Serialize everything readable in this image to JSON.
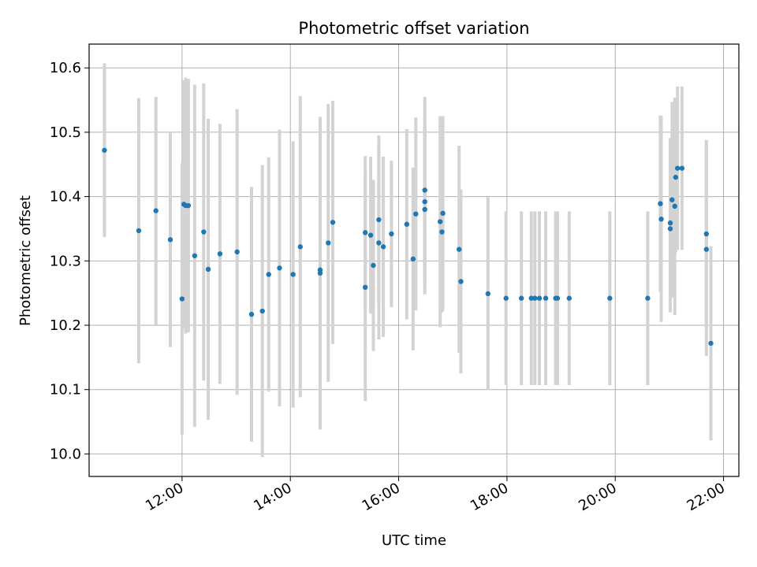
{
  "chart_data": {
    "type": "scatter",
    "title": "Photometric offset variation",
    "xlabel": "UTC time",
    "ylabel": "Photometric offset",
    "xlim": [
      "10:17",
      "22:17"
    ],
    "ylim": [
      9.965,
      10.637
    ],
    "xticks": [
      "12:00",
      "14:00",
      "16:00",
      "18:00",
      "20:00",
      "22:00"
    ],
    "yticks": [
      10.0,
      10.1,
      10.2,
      10.3,
      10.4,
      10.5,
      10.6
    ],
    "grid": true,
    "colors": {
      "point": "#1f77b4",
      "errorbar": "#d3d3d3",
      "grid": "#b0b0b0"
    },
    "series": [
      {
        "x": [
          "10:34",
          "11:12",
          "11:31",
          "11:47",
          "12:00",
          "12:02",
          "12:04",
          "12:07",
          "12:14",
          "12:24",
          "12:29",
          "12:42",
          "13:01",
          "13:17",
          "13:29",
          "13:36",
          "13:48",
          "14:03",
          "14:11",
          "14:33",
          "14:33",
          "14:42",
          "14:47",
          "15:23",
          "15:23",
          "15:29",
          "15:32",
          "15:38",
          "15:38",
          "15:43",
          "15:52",
          "16:09",
          "16:16",
          "16:19",
          "16:29",
          "16:29",
          "16:29",
          "16:46",
          "16:48",
          "16:49",
          "17:07",
          "17:09",
          "17:39",
          "17:59",
          "18:16",
          "18:27",
          "18:31",
          "18:36",
          "18:43",
          "18:54",
          "18:56",
          "19:09",
          "19:54",
          "20:36",
          "20:50",
          "20:51",
          "21:01",
          "21:01",
          "21:03",
          "21:06",
          "21:07",
          "21:09",
          "21:14",
          "21:41",
          "21:41",
          "21:46"
        ],
        "y": [
          10.472,
          10.347,
          10.378,
          10.333,
          10.241,
          10.388,
          10.386,
          10.386,
          10.308,
          10.345,
          10.287,
          10.311,
          10.314,
          10.217,
          10.222,
          10.279,
          10.289,
          10.279,
          10.322,
          10.286,
          10.281,
          10.328,
          10.36,
          10.259,
          10.344,
          10.34,
          10.293,
          10.364,
          10.328,
          10.322,
          10.342,
          10.357,
          10.303,
          10.373,
          10.41,
          10.392,
          10.38,
          10.361,
          10.345,
          10.374,
          10.318,
          10.268,
          10.249,
          10.242,
          10.242,
          10.242,
          10.242,
          10.242,
          10.242,
          10.242,
          10.242,
          10.242,
          10.242,
          10.242,
          10.389,
          10.365,
          10.359,
          10.35,
          10.395,
          10.385,
          10.43,
          10.444,
          10.444,
          10.342,
          10.318,
          10.172
        ],
        "yerr": [
          0.135,
          0.206,
          0.177,
          0.167,
          0.211,
          0.193,
          0.199,
          0.197,
          0.266,
          0.231,
          0.234,
          0.202,
          0.222,
          0.198,
          0.227,
          0.182,
          0.215,
          0.207,
          0.234,
          0.238,
          0.243,
          0.216,
          0.189,
          0.177,
          0.119,
          0.122,
          0.133,
          0.131,
          0.15,
          0.14,
          0.114,
          0.148,
          0.142,
          0.15,
          0.145,
          0.119,
          0.132,
          0.164,
          0.125,
          0.151,
          0.161,
          0.143,
          0.15,
          0.135,
          0.135,
          0.135,
          0.135,
          0.135,
          0.135,
          0.135,
          0.135,
          0.135,
          0.135,
          0.135,
          0.137,
          0.16,
          0.132,
          0.13,
          0.152,
          0.169,
          0.117,
          0.127,
          0.127,
          0.146,
          0.166,
          0.151
        ]
      }
    ]
  }
}
